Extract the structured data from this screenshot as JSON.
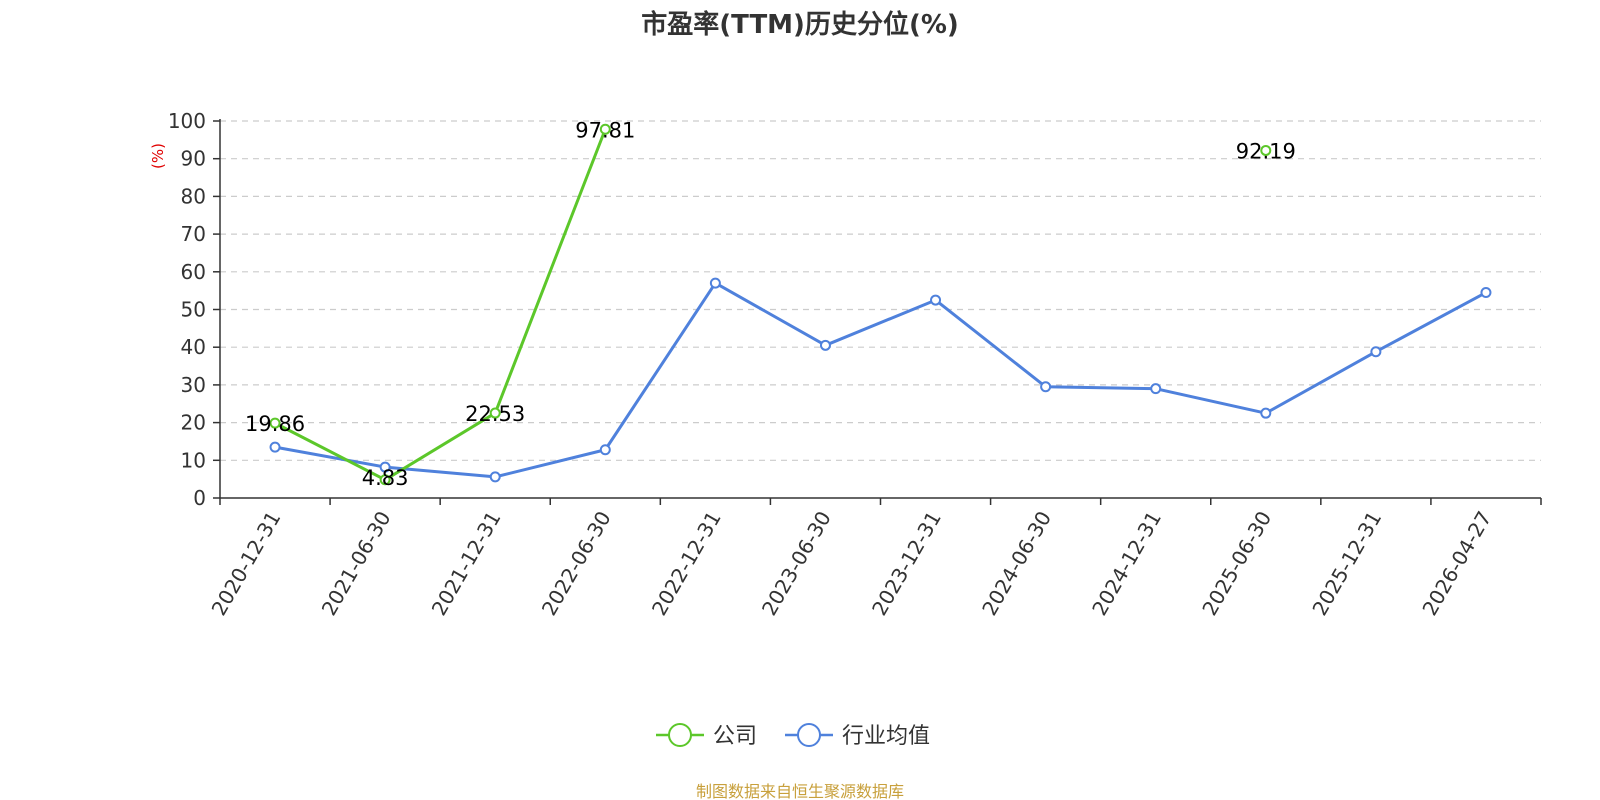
{
  "chart_data": {
    "type": "line",
    "title": "市盈率(TTM)历史分位(%)",
    "ylabel": "(%)",
    "ylim": [
      0,
      100
    ],
    "yticks": [
      0,
      10,
      20,
      30,
      40,
      50,
      60,
      70,
      80,
      90,
      100
    ],
    "grid": true,
    "legend_position": "bottom",
    "categories": [
      "2020-12-31",
      "2021-06-30",
      "2021-12-31",
      "2022-06-30",
      "2022-12-31",
      "2023-06-30",
      "2023-12-31",
      "2024-06-30",
      "2024-12-31",
      "2025-06-30",
      "2025-12-31",
      "2026-04-27"
    ],
    "series": [
      {
        "name": "公司",
        "color": "#5cc72a",
        "values": [
          19.86,
          4.83,
          22.53,
          97.81,
          null,
          null,
          null,
          null,
          null,
          92.19,
          null,
          null
        ],
        "labels": [
          "19.86",
          "4.83",
          "22.53",
          "97.81",
          null,
          null,
          null,
          null,
          null,
          "92.19",
          null,
          null
        ]
      },
      {
        "name": "行业均值",
        "color": "#4f81dc",
        "values": [
          13.5,
          8.2,
          5.6,
          12.8,
          57.0,
          40.5,
          52.5,
          29.5,
          29.0,
          22.5,
          38.8,
          54.5
        ]
      }
    ],
    "source": "制图数据来自恒生聚源数据库"
  }
}
